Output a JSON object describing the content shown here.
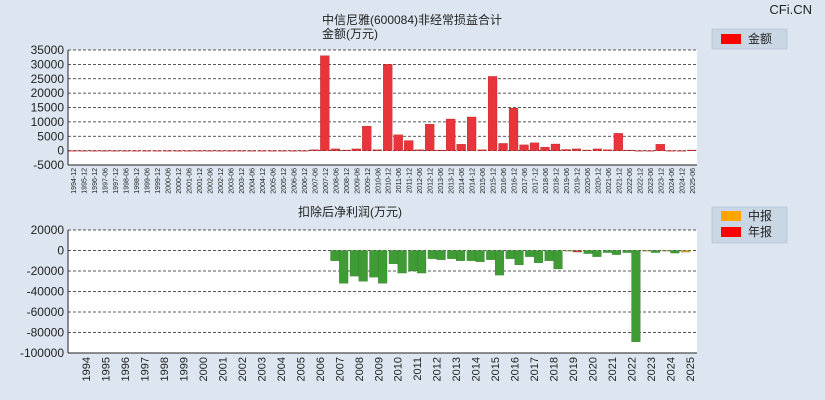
{
  "watermark": "CFi.CN",
  "chart_data": [
    {
      "type": "bar",
      "title": "中信尼雅(600084)非经常损益合计",
      "subtitle": "金额(万元)",
      "ylim": [
        -5000,
        35000
      ],
      "yticks": [
        "35000",
        "30000",
        "25000",
        "20000",
        "15000",
        "10000",
        "5000",
        "0",
        "-5000"
      ],
      "legend": [
        "金额"
      ],
      "legend_colors": [
        "#ff0000"
      ],
      "categories": [
        "1994-12",
        "1995-12",
        "1996-12",
        "1997-06",
        "1997-12",
        "1998-06",
        "1998-12",
        "1999-06",
        "1999-12",
        "2000-06",
        "2000-12",
        "2001-06",
        "2001-12",
        "2002-06",
        "2002-12",
        "2003-06",
        "2003-12",
        "2004-06",
        "2004-12",
        "2005-06",
        "2005-12",
        "2006-06",
        "2006-12",
        "2007-06",
        "2007-12",
        "2008-06",
        "2008-12",
        "2009-06",
        "2009-12",
        "2010-06",
        "2010-12",
        "2011-06",
        "2011-12",
        "2012-06",
        "2012-12",
        "2013-06",
        "2013-12",
        "2014-06",
        "2014-12",
        "2015-06",
        "2015-12",
        "2016-06",
        "2016-12",
        "2017-06",
        "2017-12",
        "2018-06",
        "2018-12",
        "2019-06",
        "2019-12",
        "2020-06",
        "2020-12",
        "2021-06",
        "2021-12",
        "2022-06",
        "2022-12",
        "2023-06",
        "2023-12",
        "2024-06",
        "2024-12",
        "2025-06"
      ],
      "values": [
        0,
        0,
        0,
        0,
        0,
        0,
        0,
        0,
        0,
        0,
        0,
        0,
        0,
        0,
        0,
        0,
        0,
        0,
        0,
        0,
        0,
        0,
        0,
        300,
        33000,
        600,
        200,
        600,
        8500,
        300,
        30000,
        5500,
        3500,
        300,
        9200,
        200,
        11000,
        2200,
        11700,
        300,
        25800,
        2500,
        14800,
        2000,
        2700,
        1200,
        2300,
        400,
        600,
        200,
        600,
        300,
        6000,
        200,
        0,
        0,
        2200,
        0,
        0,
        200
      ]
    },
    {
      "type": "bar",
      "title": "扣除后净利润(万元)",
      "ylim": [
        -100000,
        20000
      ],
      "yticks": [
        "20000",
        "0",
        "-20000",
        "-40000",
        "-60000",
        "-80000",
        "-100000"
      ],
      "legend": [
        "中报",
        "年报"
      ],
      "legend_colors": [
        "#ffa500",
        "#ff0000"
      ],
      "year_labels": [
        "1994",
        "1995",
        "1996",
        "1997",
        "1998",
        "1999",
        "2000",
        "2001",
        "2002",
        "2003",
        "2004",
        "2005",
        "2006",
        "2007",
        "2008",
        "2009",
        "2010",
        "2011",
        "2012",
        "2013",
        "2014",
        "2015",
        "2016",
        "2017",
        "2018",
        "2019",
        "2020",
        "2021",
        "2022",
        "2023",
        "2024",
        "2025"
      ],
      "series": [
        {
          "name": "中报",
          "values": [
            0,
            0,
            0,
            0,
            0,
            0,
            0,
            0,
            0,
            0,
            0,
            0,
            0,
            -10000,
            -25000,
            -26000,
            -13000,
            -20000,
            -8000,
            -8000,
            -10000,
            -9000,
            -8000,
            -6000,
            -10000,
            -500,
            -3000,
            -2000,
            -2000,
            -500,
            -500,
            -1500
          ]
        },
        {
          "name": "年报",
          "values": [
            0,
            0,
            0,
            0,
            0,
            0,
            0,
            0,
            0,
            0,
            0,
            0,
            0,
            -32000,
            -30000,
            -32000,
            -22000,
            -22000,
            -9000,
            -10000,
            -11000,
            -24000,
            -14000,
            -12000,
            -18000,
            -1500,
            -6000,
            -4000,
            -89000,
            -2000,
            -2500,
            0
          ]
        }
      ]
    }
  ]
}
